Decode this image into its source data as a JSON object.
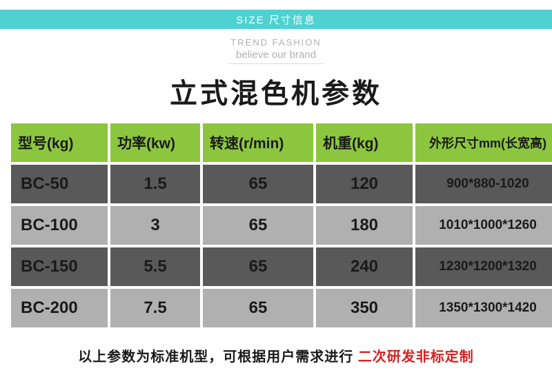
{
  "banner": "SIZE  尺寸信息",
  "sub1": "TREND FASHION",
  "sub2": "believe our brand",
  "title": "立式混色机参数",
  "columns": [
    "型号(kg)",
    "功率(kw)",
    "转速(r/min)",
    "机重(kg)",
    "外形尺寸mm(长宽高)"
  ],
  "col_widths": [
    "140",
    "130",
    "160",
    "140",
    "210"
  ],
  "rows": [
    {
      "cls": "row-dark",
      "cells": [
        "BC-50",
        "1.5",
        "65",
        "120",
        "900*880-1020"
      ]
    },
    {
      "cls": "row-light",
      "cells": [
        "BC-100",
        "3",
        "65",
        "180",
        "1010*1000*1260"
      ]
    },
    {
      "cls": "row-dark",
      "cells": [
        "BC-150",
        "5.5",
        "65",
        "240",
        "1230*1200*1320"
      ]
    },
    {
      "cls": "row-light",
      "cells": [
        "BC-200",
        "7.5",
        "65",
        "350",
        "1350*1300*1420"
      ]
    }
  ],
  "footer_a": "以上参数为标准机型，可根据用户需求进行 ",
  "footer_b": "二次研发非标定制",
  "colors": {
    "banner_bg": "#4fd1d1",
    "header_bg": "#8cc63f",
    "row_dark": "#595959",
    "row_light": "#b0b0b0",
    "accent_red": "#d62020"
  }
}
